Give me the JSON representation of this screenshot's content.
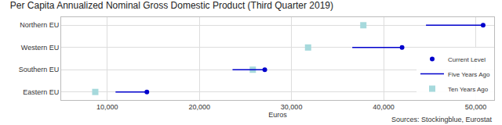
{
  "chart_data": {
    "type": "dumbbell",
    "title": "Per Capita Annualized Nominal Gross Domestic Product (Third Quarter 2019)",
    "x_label": "Euros",
    "annotations": [
      "Sources: Stockingblue, Eurostat"
    ],
    "orientation": "horizontal",
    "categories": [
      "Northern EU",
      "Western EU",
      "Southern EU",
      "Eastern EU"
    ],
    "series": [
      {
        "name": "Current Level",
        "color": "#0000cc",
        "marker": "circle",
        "values": [
          50800,
          42000,
          27100,
          14300
        ]
      },
      {
        "name": "Five Years Ago",
        "color": "#0000cc",
        "marker": "line",
        "values": [
          44600,
          36600,
          23600,
          10900
        ]
      },
      {
        "name": "Ten Years Ago",
        "color": "#a6d9dc",
        "marker": "square",
        "values": [
          37800,
          31800,
          25800,
          8700
        ]
      }
    ],
    "xlim": [
      5000,
      52000
    ],
    "xticks": [
      {
        "value": 10000,
        "label": "10,000"
      },
      {
        "value": 20000,
        "label": "20,000"
      },
      {
        "value": 30000,
        "label": "30,000"
      },
      {
        "value": 40000,
        "label": "40,000"
      },
      {
        "value": 50000,
        "label": "50,000"
      }
    ],
    "grid": true,
    "legend": "bottom right"
  }
}
